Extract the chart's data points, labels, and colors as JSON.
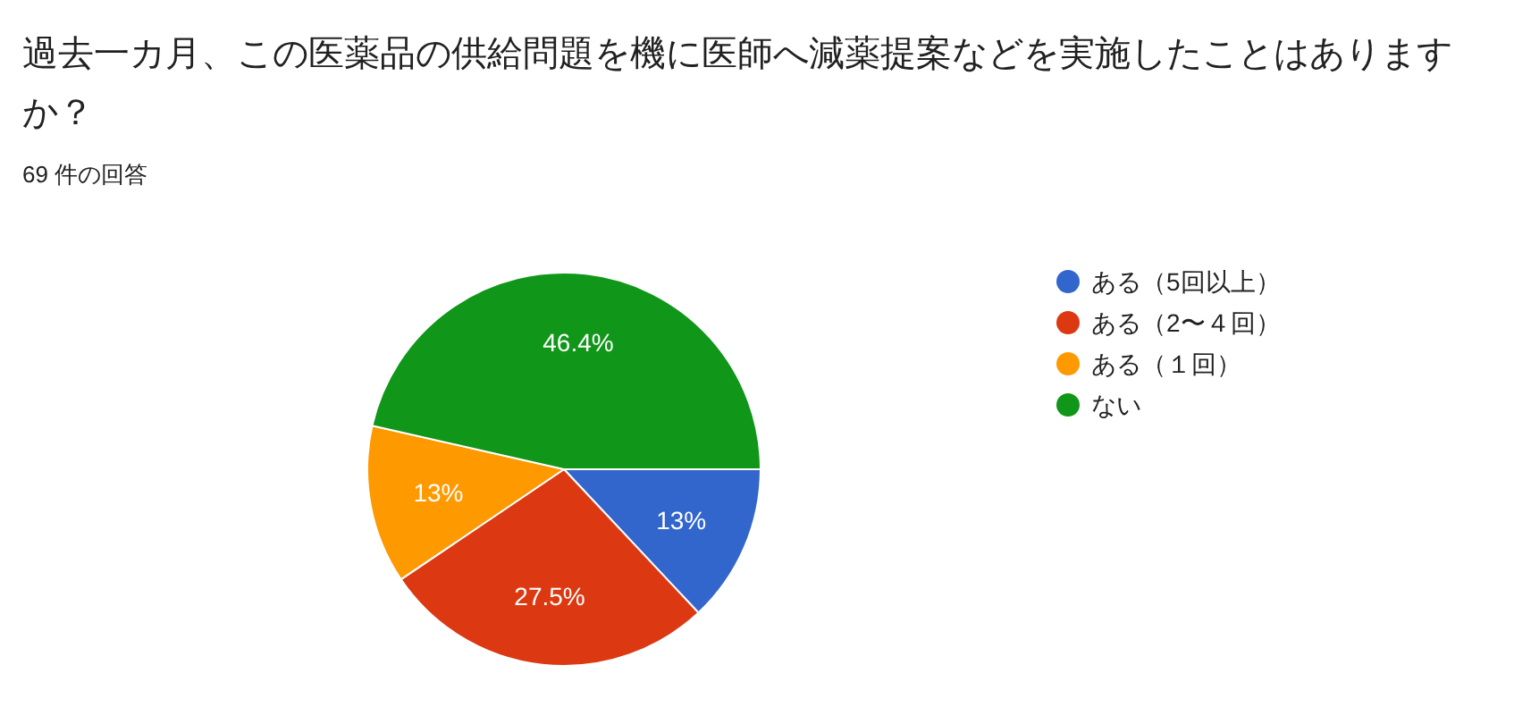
{
  "chart_data": {
    "type": "pie",
    "title": "過去一カ月、この医薬品の供給問題を機に医師へ減薬提案などを実施したことはありますか？",
    "subtitle": "69 件の回答",
    "categories": [
      "ある（5回以上）",
      "ある（2〜４回）",
      "ある（１回）",
      "ない"
    ],
    "values": [
      13,
      27.5,
      13,
      46.4
    ],
    "colors": [
      "#3366cc",
      "#dc3912",
      "#ff9900",
      "#109618"
    ],
    "value_labels": [
      "13%",
      "27.5%",
      "13%",
      "46.4%"
    ],
    "legend": "right"
  }
}
